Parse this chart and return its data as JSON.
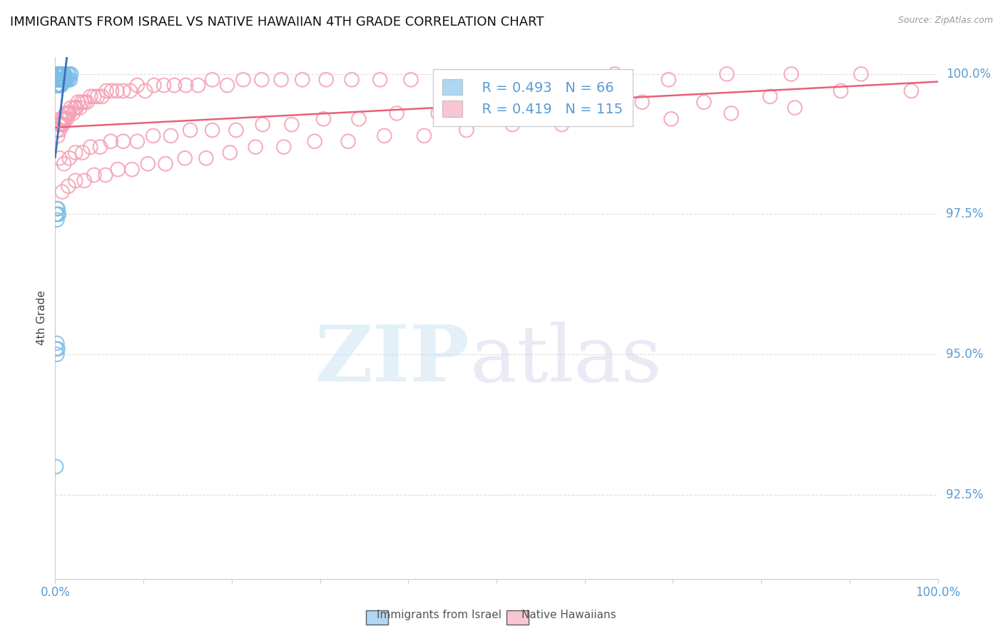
{
  "title": "IMMIGRANTS FROM ISRAEL VS NATIVE HAWAIIAN 4TH GRADE CORRELATION CHART",
  "source": "Source: ZipAtlas.com",
  "ylabel": "4th Grade",
  "ylabel_right_ticks": [
    "100.0%",
    "97.5%",
    "95.0%",
    "92.5%"
  ],
  "ylabel_right_vals": [
    1.0,
    0.975,
    0.95,
    0.925
  ],
  "legend_israel_R": "0.493",
  "legend_israel_N": "66",
  "legend_hawaiian_R": "0.419",
  "legend_hawaiian_N": "115",
  "israel_color": "#7abde8",
  "hawaiian_color": "#f4a0b5",
  "trendline_israel_color": "#3a6fbd",
  "trendline_hawaiian_color": "#e8607a",
  "background_color": "#ffffff",
  "grid_color": "#dddddd",
  "axis_label_color": "#5b9bd5",
  "title_fontsize": 13,
  "xlim": [
    0.0,
    1.0
  ],
  "ylim": [
    0.91,
    1.003
  ],
  "israel_x": [
    0.001,
    0.001,
    0.001,
    0.002,
    0.002,
    0.002,
    0.002,
    0.002,
    0.002,
    0.003,
    0.003,
    0.003,
    0.003,
    0.003,
    0.003,
    0.003,
    0.004,
    0.004,
    0.004,
    0.004,
    0.004,
    0.004,
    0.005,
    0.005,
    0.005,
    0.005,
    0.005,
    0.005,
    0.006,
    0.006,
    0.006,
    0.006,
    0.007,
    0.007,
    0.007,
    0.007,
    0.007,
    0.008,
    0.008,
    0.008,
    0.009,
    0.009,
    0.009,
    0.01,
    0.01,
    0.01,
    0.011,
    0.011,
    0.012,
    0.013,
    0.014,
    0.015,
    0.016,
    0.017,
    0.018,
    0.001,
    0.002,
    0.002,
    0.003,
    0.003,
    0.004,
    0.001,
    0.002,
    0.002,
    0.003,
    0.001
  ],
  "israel_y": [
    0.999,
    0.998,
    1.0,
    0.999,
    0.998,
    0.999,
    1.0,
    0.999,
    0.998,
    0.999,
    0.998,
    1.0,
    0.999,
    0.998,
    0.999,
    1.0,
    0.999,
    0.998,
    0.999,
    1.0,
    0.999,
    0.998,
    0.999,
    0.998,
    1.0,
    0.999,
    0.998,
    0.999,
    0.999,
    0.998,
    1.0,
    0.999,
    0.999,
    1.0,
    0.999,
    0.998,
    0.999,
    0.999,
    1.0,
    0.999,
    0.999,
    1.0,
    0.999,
    1.0,
    0.999,
    0.999,
    1.0,
    0.999,
    0.999,
    0.999,
    1.0,
    0.999,
    1.0,
    0.999,
    1.0,
    0.975,
    0.976,
    0.974,
    0.976,
    0.975,
    0.975,
    0.951,
    0.952,
    0.95,
    0.951,
    0.93
  ],
  "hawaiian_x": [
    0.002,
    0.003,
    0.004,
    0.005,
    0.006,
    0.006,
    0.007,
    0.008,
    0.009,
    0.01,
    0.011,
    0.012,
    0.013,
    0.014,
    0.015,
    0.016,
    0.018,
    0.02,
    0.022,
    0.024,
    0.026,
    0.028,
    0.03,
    0.033,
    0.036,
    0.04,
    0.044,
    0.048,
    0.053,
    0.058,
    0.064,
    0.07,
    0.077,
    0.085,
    0.093,
    0.102,
    0.112,
    0.123,
    0.135,
    0.148,
    0.162,
    0.178,
    0.195,
    0.213,
    0.234,
    0.256,
    0.28,
    0.307,
    0.336,
    0.368,
    0.403,
    0.441,
    0.483,
    0.529,
    0.579,
    0.634,
    0.695,
    0.761,
    0.834,
    0.913,
    0.005,
    0.01,
    0.016,
    0.023,
    0.031,
    0.04,
    0.051,
    0.063,
    0.077,
    0.093,
    0.111,
    0.131,
    0.153,
    0.178,
    0.205,
    0.235,
    0.268,
    0.304,
    0.344,
    0.387,
    0.434,
    0.485,
    0.54,
    0.6,
    0.665,
    0.735,
    0.81,
    0.89,
    0.97,
    0.008,
    0.015,
    0.023,
    0.033,
    0.044,
    0.057,
    0.071,
    0.087,
    0.105,
    0.125,
    0.147,
    0.171,
    0.198,
    0.227,
    0.259,
    0.294,
    0.332,
    0.373,
    0.418,
    0.466,
    0.518,
    0.574,
    0.634,
    0.698,
    0.766,
    0.838
  ],
  "hawaiian_y": [
    0.99,
    0.989,
    0.991,
    0.99,
    0.991,
    0.992,
    0.991,
    0.992,
    0.991,
    0.992,
    0.992,
    0.993,
    0.992,
    0.993,
    0.993,
    0.993,
    0.994,
    0.993,
    0.994,
    0.994,
    0.995,
    0.994,
    0.995,
    0.995,
    0.995,
    0.996,
    0.996,
    0.996,
    0.996,
    0.997,
    0.997,
    0.997,
    0.997,
    0.997,
    0.998,
    0.997,
    0.998,
    0.998,
    0.998,
    0.998,
    0.998,
    0.999,
    0.998,
    0.999,
    0.999,
    0.999,
    0.999,
    0.999,
    0.999,
    0.999,
    0.999,
    0.999,
    0.999,
    0.999,
    0.999,
    1.0,
    0.999,
    1.0,
    1.0,
    1.0,
    0.985,
    0.984,
    0.985,
    0.986,
    0.986,
    0.987,
    0.987,
    0.988,
    0.988,
    0.988,
    0.989,
    0.989,
    0.99,
    0.99,
    0.99,
    0.991,
    0.991,
    0.992,
    0.992,
    0.993,
    0.993,
    0.993,
    0.994,
    0.994,
    0.995,
    0.995,
    0.996,
    0.997,
    0.997,
    0.979,
    0.98,
    0.981,
    0.981,
    0.982,
    0.982,
    0.983,
    0.983,
    0.984,
    0.984,
    0.985,
    0.985,
    0.986,
    0.987,
    0.987,
    0.988,
    0.988,
    0.989,
    0.989,
    0.99,
    0.991,
    0.991,
    0.992,
    0.992,
    0.993,
    0.994
  ]
}
